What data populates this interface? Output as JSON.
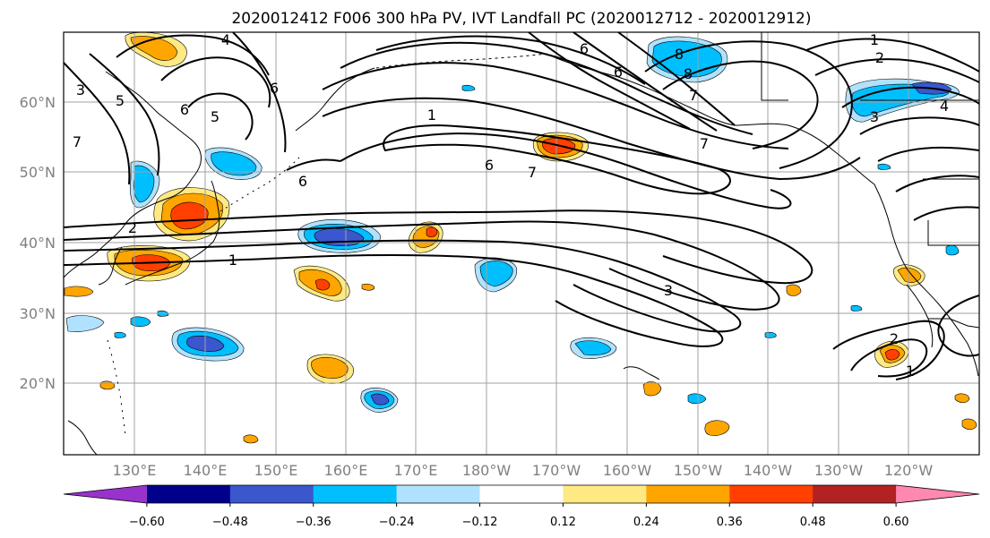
{
  "title": "2020012412 F006 300 hPa PV, IVT Landfall PC (2020012712 - 2020012912)",
  "lat_labels": [
    "20°N",
    "30°N",
    "40°N",
    "50°N",
    "60°N"
  ],
  "lon_labels": [
    "130°E",
    "140°E",
    "150°E",
    "160°E",
    "170°E",
    "180°W",
    "170°W",
    "160°W",
    "150°W",
    "140°W",
    "130°W",
    "120°W"
  ],
  "contour_labels": [
    "4",
    "6",
    "5",
    "6",
    "3",
    "5",
    "7",
    "6",
    "2",
    "1",
    "1",
    "6",
    "7",
    "6",
    "8",
    "8",
    "7",
    "7",
    "6",
    "1",
    "2",
    "3",
    "4",
    "3",
    "2",
    "1"
  ],
  "colorbar": {
    "colors": [
      "#9932cc",
      "#00008b",
      "#3a57cd",
      "#00bfff",
      "#b0e2ff",
      "#ffffff",
      "#ffe983",
      "#ffa500",
      "#ff4000",
      "#b22222",
      "#ff88b0"
    ],
    "tick_labels": [
      "−0.60",
      "−0.48",
      "−0.36",
      "−0.24",
      "−0.12",
      "0.12",
      "0.24",
      "0.36",
      "0.48",
      "0.60"
    ]
  },
  "colors": {
    "pos_light": "#ffe983",
    "pos_mid": "#ffa500",
    "pos_strong": "#ff4000",
    "neg_light": "#b0e2ff",
    "neg_mid": "#00bfff",
    "neg_strong": "#3a57cd"
  }
}
